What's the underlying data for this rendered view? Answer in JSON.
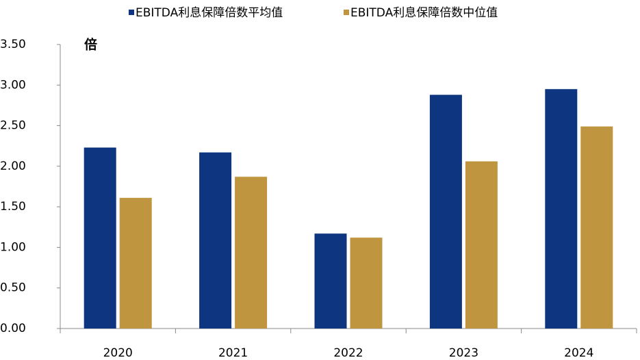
{
  "chart_data": {
    "type": "bar",
    "unit_label": "倍",
    "categories": [
      "2020",
      "2021",
      "2022",
      "2023",
      "2024"
    ],
    "series": [
      {
        "name": "EBITDA利息保障倍数平均值",
        "color": "#0d3580",
        "values": [
          2.23,
          2.17,
          1.17,
          2.88,
          2.95
        ]
      },
      {
        "name": "EBITDA利息保障倍数中位值",
        "color": "#c0953f",
        "values": [
          1.61,
          1.87,
          1.12,
          2.06,
          2.49
        ]
      }
    ],
    "ylim": [
      0,
      3.5
    ],
    "yticks": [
      {
        "value": 0,
        "label": "0.00"
      },
      {
        "value": 0.5,
        "label": "0.50"
      },
      {
        "value": 1,
        "label": "1.00"
      },
      {
        "value": 1.5,
        "label": "1.50"
      },
      {
        "value": 2,
        "label": "2.00"
      },
      {
        "value": 2.5,
        "label": "2.50"
      },
      {
        "value": 3,
        "label": "3.00"
      },
      {
        "value": 3.5,
        "label": "3.50"
      }
    ],
    "grid": false,
    "legend": "top"
  }
}
